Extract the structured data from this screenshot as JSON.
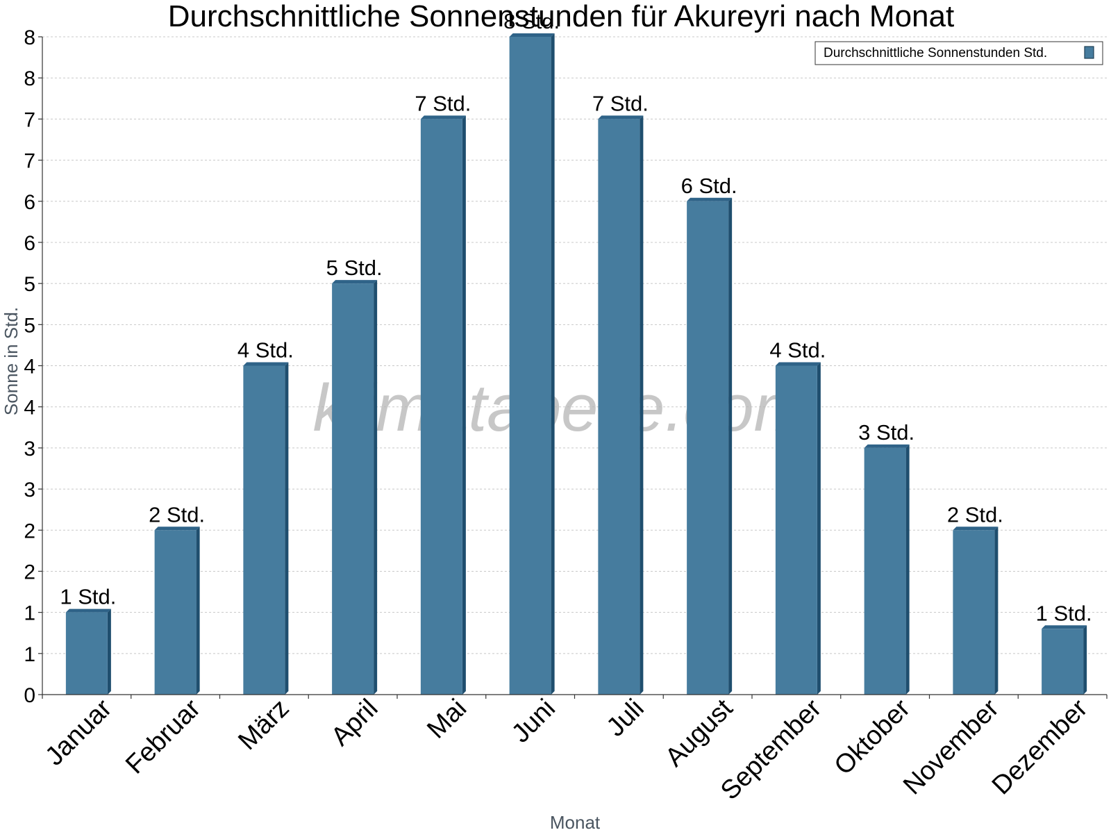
{
  "chart_data": {
    "type": "bar",
    "title": "Durchschnittliche Sonnenstunden für Akureyri nach Monat",
    "xlabel": "Monat",
    "ylabel": "Sonne in Std.",
    "categories": [
      "Januar",
      "Februar",
      "März",
      "April",
      "Mai",
      "Juni",
      "Juli",
      "August",
      "September",
      "Oktober",
      "November",
      "Dezember"
    ],
    "series": [
      {
        "name": "Durchschnittliche Sonnenstunden Std.",
        "values": [
          1.0,
          2.0,
          4.0,
          5.0,
          7.0,
          8.0,
          7.0,
          6.0,
          4.0,
          3.0,
          2.0,
          0.8
        ],
        "data_labels": [
          "1 Std.",
          "2 Std.",
          "4 Std.",
          "5 Std.",
          "7 Std.",
          "8 Std.",
          "7 Std.",
          "6 Std.",
          "4 Std.",
          "3 Std.",
          "2 Std.",
          "1 Std."
        ]
      }
    ],
    "ylim": [
      0,
      8
    ],
    "y_tick_values": [
      0,
      0.5,
      1,
      1.5,
      2,
      2.5,
      3,
      3.5,
      4,
      4.5,
      5,
      5.5,
      6,
      6.5,
      7,
      7.5,
      8
    ],
    "y_tick_labels": [
      "0",
      "1",
      "1",
      "2",
      "2",
      "3",
      "3",
      "4",
      "4",
      "5",
      "5",
      "6",
      "6",
      "7",
      "7",
      "8",
      "8"
    ],
    "grid": true,
    "legend_position": "top-right",
    "watermark": "klimatabelle.com",
    "colors": {
      "bar": "#467c9e",
      "bar_dark": "#1f4e6e",
      "bar_top": "#2f6388",
      "legend_swatch": "#467c9e"
    }
  }
}
